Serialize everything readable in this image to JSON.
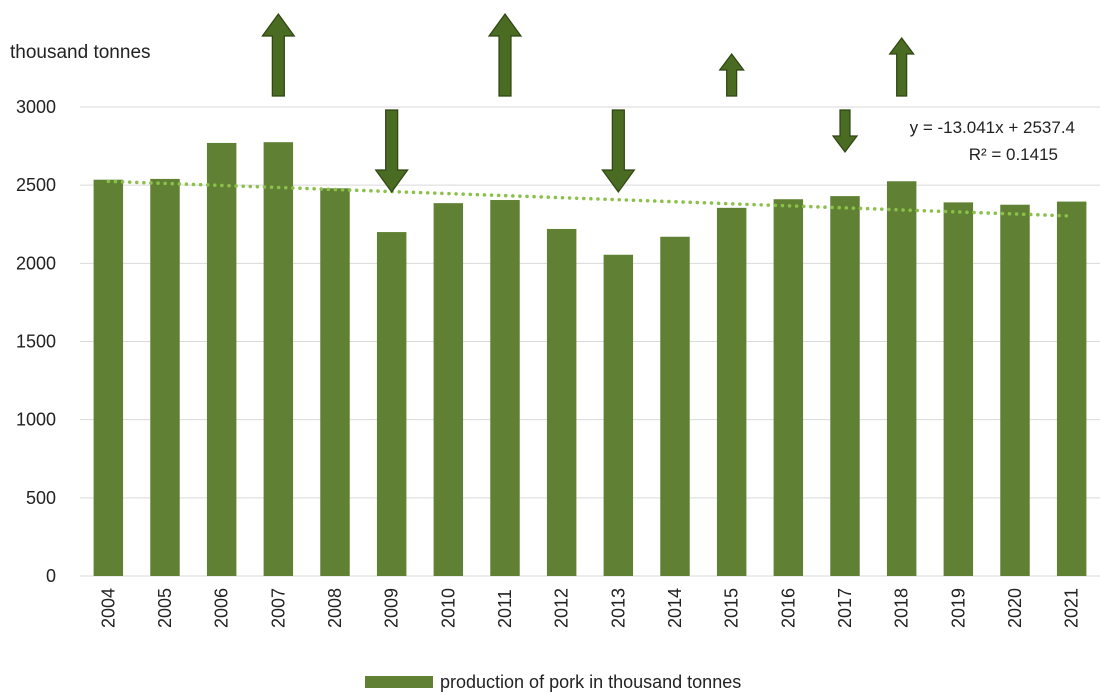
{
  "chart_data": {
    "type": "bar",
    "ylabel": "thousand tonnes",
    "ylim": [
      0,
      3000
    ],
    "yticks": [
      0,
      500,
      1000,
      1500,
      2000,
      2500,
      3000
    ],
    "categories": [
      "2004",
      "2005",
      "2006",
      "2007",
      "2008",
      "2009",
      "2010",
      "2011",
      "2012",
      "2013",
      "2014",
      "2015",
      "2016",
      "2017",
      "2018",
      "2019",
      "2020",
      "2021"
    ],
    "series": [
      {
        "name": "production of pork in thousand tonnes",
        "values": [
          2535,
          2540,
          2770,
          2775,
          2480,
          2200,
          2385,
          2405,
          2220,
          2055,
          2170,
          2355,
          2410,
          2430,
          2525,
          2390,
          2375,
          2395
        ]
      }
    ],
    "trendline": {
      "type": "linear",
      "equation": "y = -13.041x + 2537.4",
      "r_squared": "R² = 0.1415",
      "slope": -13.041,
      "intercept": 2537.4
    },
    "annotations": {
      "arrows": [
        {
          "category": "2007",
          "direction": "up",
          "size": "large"
        },
        {
          "category": "2009",
          "direction": "down",
          "size": "large"
        },
        {
          "category": "2011",
          "direction": "up",
          "size": "large"
        },
        {
          "category": "2013",
          "direction": "down",
          "size": "large"
        },
        {
          "category": "2015",
          "direction": "up",
          "size": "small"
        },
        {
          "category": "2017",
          "direction": "down",
          "size": "small"
        },
        {
          "category": "2018",
          "direction": "up",
          "size": "medium"
        }
      ]
    },
    "grid": true,
    "legend_position": "bottom",
    "colors": {
      "bar": "#608134",
      "trend": "#8cc04a",
      "arrow": "#4a6b22",
      "grid": "#d9d9d9"
    }
  }
}
